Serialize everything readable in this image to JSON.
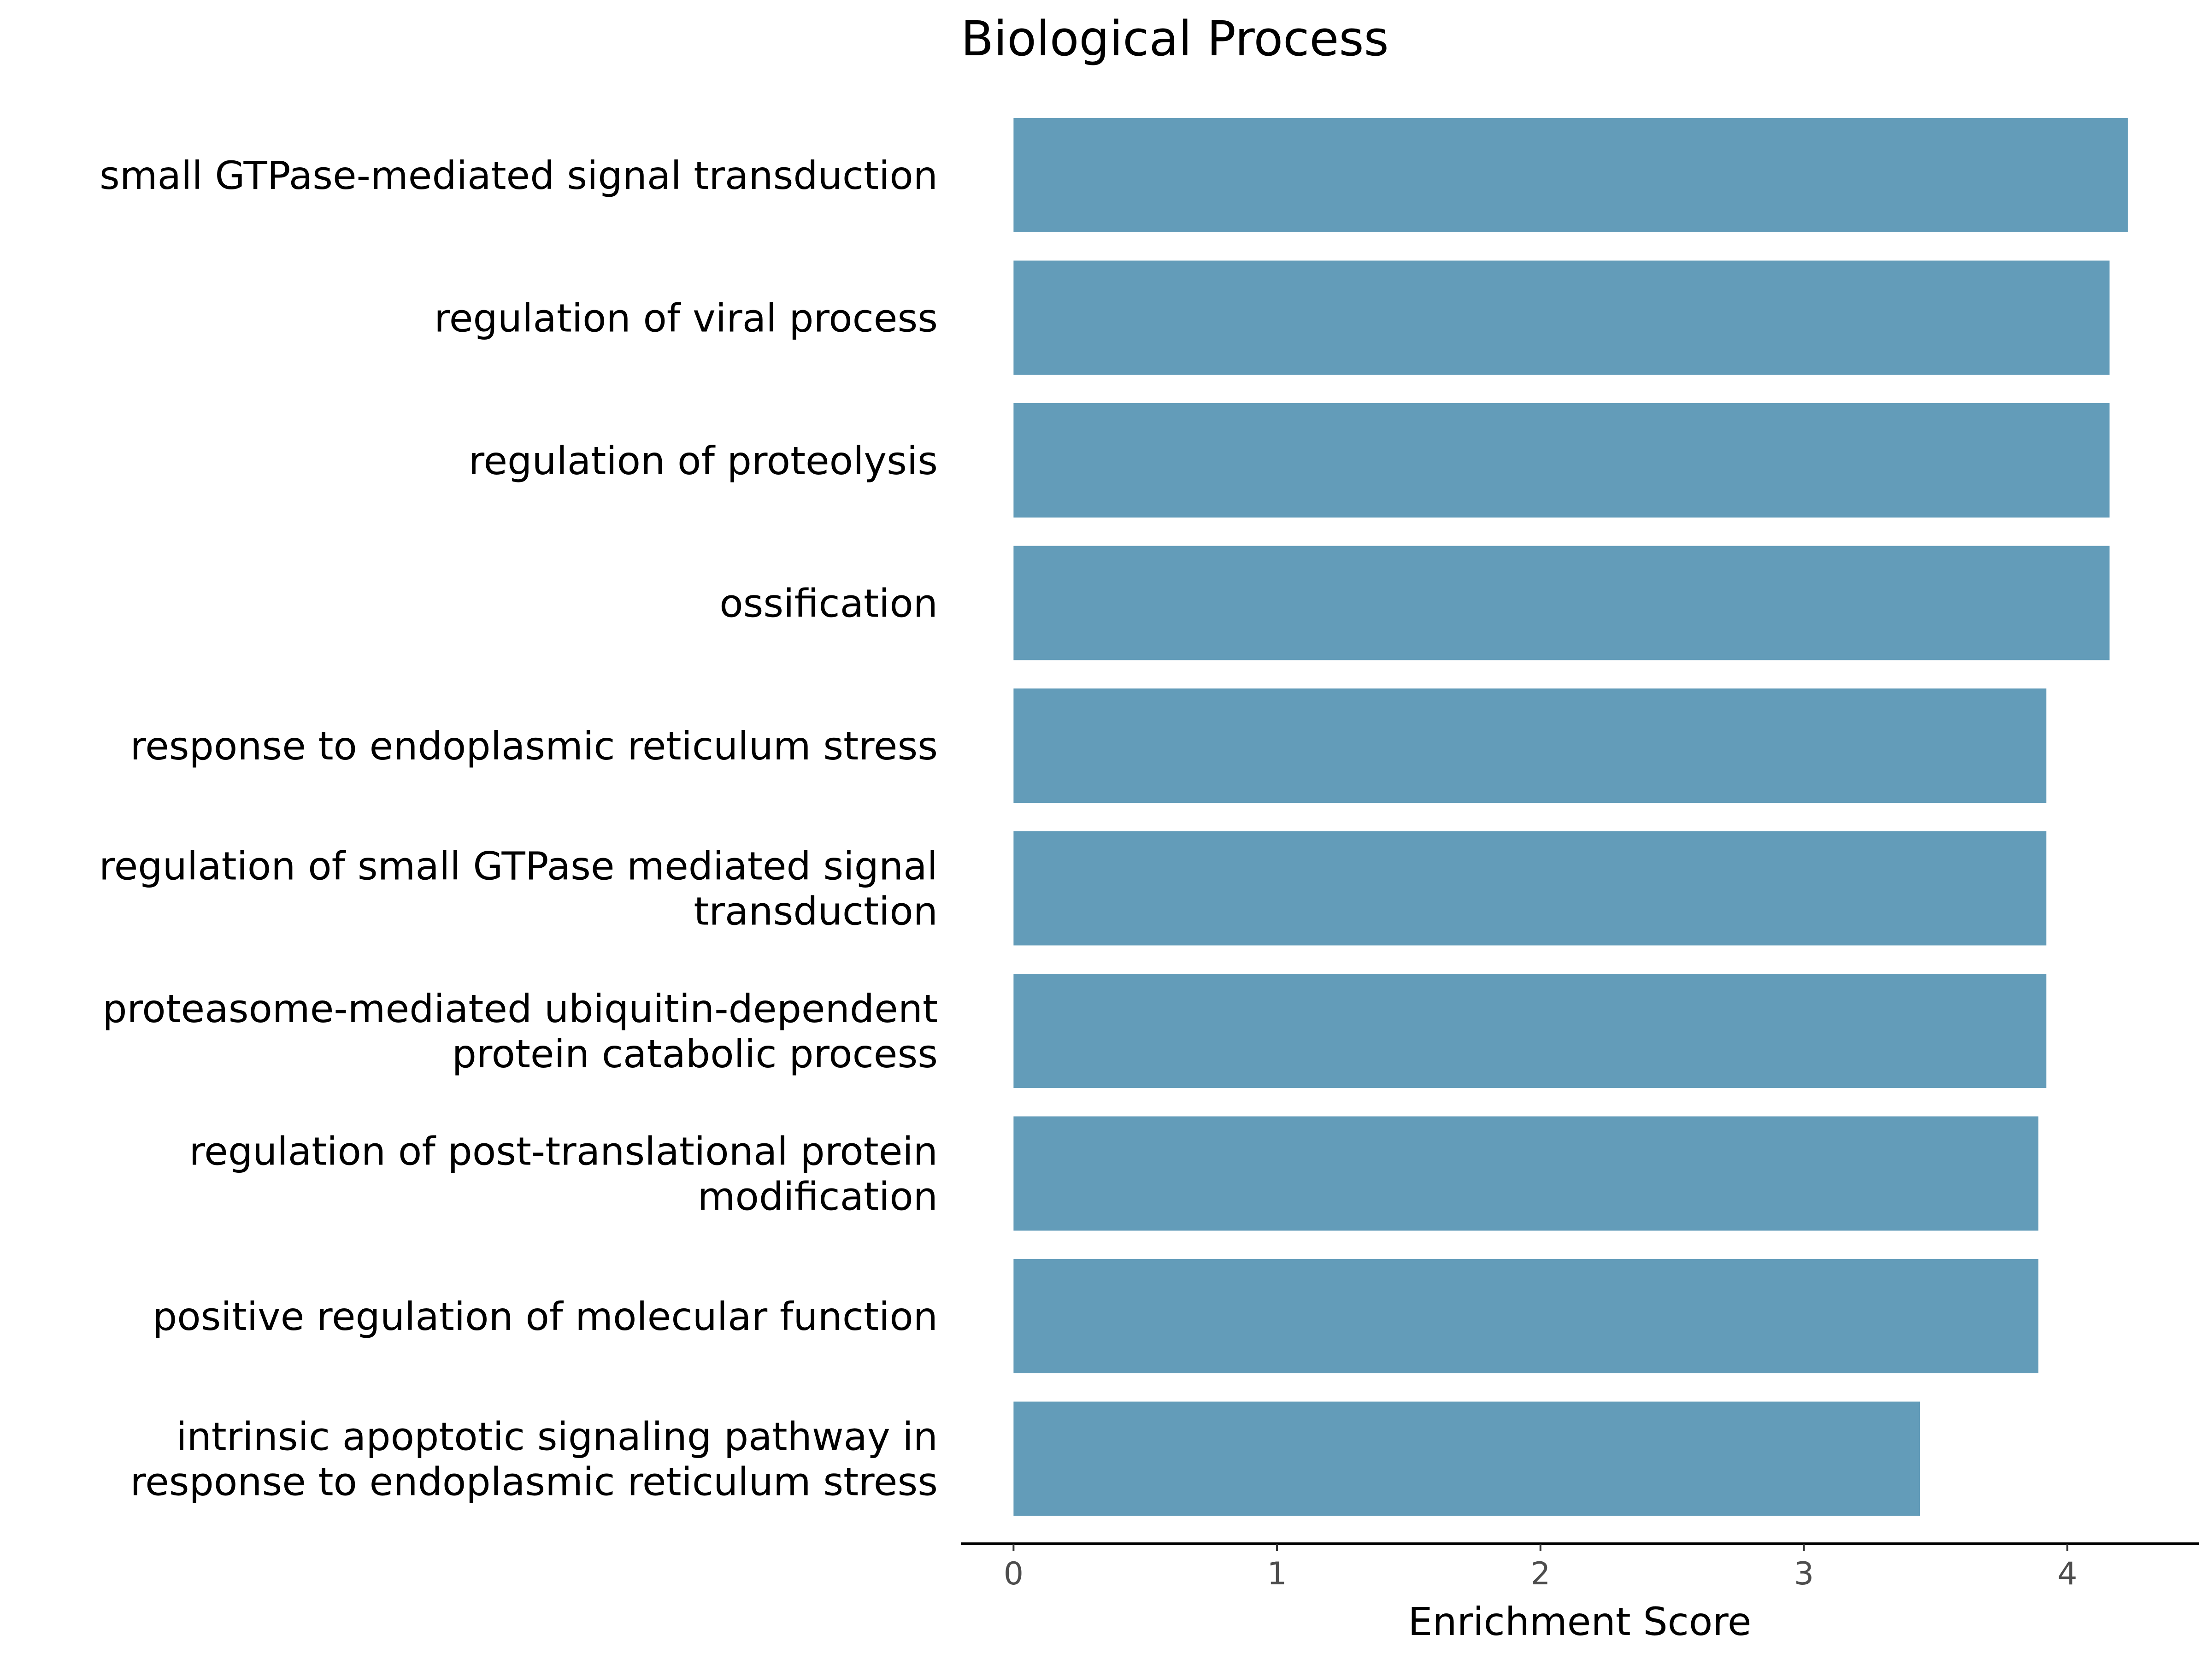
{
  "chart_data": {
    "type": "bar",
    "orientation": "horizontal",
    "title": "Biological Process",
    "xlabel": "Enrichment Score",
    "ylabel": "",
    "xlim": [
      -0.2,
      4.5
    ],
    "xticks": [
      0,
      1,
      2,
      3,
      4
    ],
    "grid": false,
    "bar_color": "#639cb9",
    "categories": [
      [
        "small GTPase-mediated signal transduction"
      ],
      [
        "regulation of viral process"
      ],
      [
        "regulation of proteolysis"
      ],
      [
        "ossification"
      ],
      [
        "response to endoplasmic reticulum stress"
      ],
      [
        "regulation of small GTPase mediated signal",
        "transduction"
      ],
      [
        "proteasome-mediated ubiquitin-dependent",
        "protein catabolic process"
      ],
      [
        "regulation of post-translational protein",
        "modification"
      ],
      [
        "positive regulation of molecular function"
      ],
      [
        "intrinsic apoptotic signaling pathway in",
        "response to endoplasmic reticulum stress"
      ]
    ],
    "values": [
      4.23,
      4.16,
      4.16,
      4.16,
      3.92,
      3.92,
      3.92,
      3.89,
      3.89,
      3.44
    ]
  }
}
